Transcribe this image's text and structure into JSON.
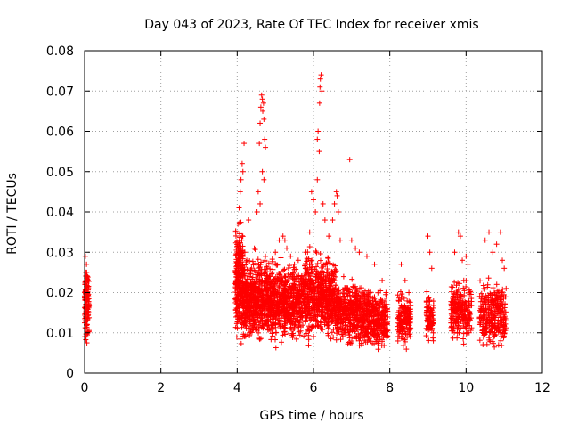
{
  "chart_data": {
    "type": "scatter",
    "title": "Day 043 of 2023, Rate Of TEC Index for receiver xmis",
    "xlabel": "GPS time / hours",
    "ylabel": "ROTI / TECUs",
    "xlim": [
      0,
      12
    ],
    "ylim": [
      0,
      0.08
    ],
    "x_ticks": [
      0,
      2,
      4,
      6,
      8,
      10,
      12
    ],
    "x_tick_labels": [
      "0",
      "2",
      "4",
      "6",
      "8",
      "10",
      "12"
    ],
    "y_ticks": [
      0,
      0.01,
      0.02,
      0.03,
      0.04,
      0.05,
      0.06,
      0.07,
      0.08
    ],
    "y_tick_labels": [
      "0",
      "0.01",
      "0.02",
      "0.03",
      "0.04",
      "0.05",
      "0.06",
      "0.07",
      "0.08"
    ],
    "grid": true,
    "marker": "+",
    "color": "#ff0000",
    "series": [
      {
        "name": "ROTI",
        "points": [
          [
            0.02,
            0.029
          ],
          [
            0.05,
            0.027
          ],
          [
            0.03,
            0.025
          ],
          [
            0.08,
            0.023
          ],
          [
            0.01,
            0.022
          ],
          [
            0.06,
            0.02
          ],
          [
            0.04,
            0.018
          ],
          [
            0.07,
            0.015
          ],
          [
            0.02,
            0.013
          ],
          [
            0.05,
            0.012
          ],
          [
            0.03,
            0.011
          ],
          [
            0.08,
            0.01
          ],
          [
            0.04,
            0.009
          ],
          [
            0.06,
            0.0075
          ],
          [
            0.02,
            0.016
          ],
          [
            0.07,
            0.024
          ],
          [
            0.05,
            0.021
          ],
          [
            0.03,
            0.014
          ],
          [
            4.02,
            0.037
          ],
          [
            4.05,
            0.041
          ],
          [
            4.08,
            0.045
          ],
          [
            4.1,
            0.048
          ],
          [
            4.13,
            0.052
          ],
          [
            4.15,
            0.05
          ],
          [
            4.18,
            0.057
          ],
          [
            4.12,
            0.033
          ],
          [
            4.2,
            0.03
          ],
          [
            4.25,
            0.028
          ],
          [
            4.3,
            0.038
          ],
          [
            4.35,
            0.025
          ],
          [
            4.45,
            0.031
          ],
          [
            4.52,
            0.04
          ],
          [
            4.55,
            0.045
          ],
          [
            4.58,
            0.057
          ],
          [
            4.6,
            0.062
          ],
          [
            4.62,
            0.066
          ],
          [
            4.64,
            0.069
          ],
          [
            4.66,
            0.068
          ],
          [
            4.67,
            0.065
          ],
          [
            4.69,
            0.067
          ],
          [
            4.7,
            0.063
          ],
          [
            4.72,
            0.058
          ],
          [
            4.74,
            0.056
          ],
          [
            4.66,
            0.05
          ],
          [
            4.7,
            0.048
          ],
          [
            4.6,
            0.042
          ],
          [
            5.0,
            0.03
          ],
          [
            5.1,
            0.033
          ],
          [
            5.2,
            0.034
          ],
          [
            5.25,
            0.033
          ],
          [
            5.3,
            0.031
          ],
          [
            5.4,
            0.029
          ],
          [
            5.5,
            0.027
          ],
          [
            5.6,
            0.028
          ],
          [
            5.8,
            0.03
          ],
          [
            5.9,
            0.035
          ],
          [
            5.95,
            0.045
          ],
          [
            6.0,
            0.043
          ],
          [
            6.05,
            0.04
          ],
          [
            6.1,
            0.058
          ],
          [
            6.12,
            0.06
          ],
          [
            6.15,
            0.055
          ],
          [
            6.18,
            0.073
          ],
          [
            6.2,
            0.074
          ],
          [
            6.17,
            0.071
          ],
          [
            6.22,
            0.07
          ],
          [
            6.16,
            0.067
          ],
          [
            6.1,
            0.048
          ],
          [
            6.25,
            0.042
          ],
          [
            6.3,
            0.038
          ],
          [
            6.4,
            0.034
          ],
          [
            6.5,
            0.038
          ],
          [
            6.55,
            0.042
          ],
          [
            6.6,
            0.045
          ],
          [
            6.62,
            0.044
          ],
          [
            6.65,
            0.04
          ],
          [
            6.7,
            0.033
          ],
          [
            6.95,
            0.053
          ],
          [
            7.0,
            0.033
          ],
          [
            7.1,
            0.031
          ],
          [
            7.2,
            0.03
          ],
          [
            7.4,
            0.029
          ],
          [
            7.6,
            0.027
          ],
          [
            7.8,
            0.023
          ],
          [
            7.9,
            0.02
          ],
          [
            8.3,
            0.027
          ],
          [
            8.4,
            0.023
          ],
          [
            8.5,
            0.02
          ],
          [
            9.0,
            0.034
          ],
          [
            9.05,
            0.03
          ],
          [
            9.1,
            0.026
          ],
          [
            9.7,
            0.03
          ],
          [
            9.8,
            0.035
          ],
          [
            9.85,
            0.034
          ],
          [
            9.9,
            0.028
          ],
          [
            10.0,
            0.029
          ],
          [
            10.05,
            0.027
          ],
          [
            10.5,
            0.033
          ],
          [
            10.6,
            0.035
          ],
          [
            10.7,
            0.03
          ],
          [
            10.8,
            0.032
          ],
          [
            10.9,
            0.035
          ],
          [
            10.95,
            0.028
          ],
          [
            11.0,
            0.026
          ]
        ]
      }
    ],
    "dense_clusters": [
      {
        "x": [
          -0.02,
          0.12
        ],
        "y": [
          0.007,
          0.028
        ],
        "count": 140
      },
      {
        "x": [
          3.95,
          4.15
        ],
        "y": [
          0.005,
          0.04
        ],
        "count": 260
      },
      {
        "x": [
          4.15,
          4.45
        ],
        "y": [
          0.006,
          0.03
        ],
        "count": 260
      },
      {
        "x": [
          4.45,
          4.85
        ],
        "y": [
          0.006,
          0.032
        ],
        "count": 300
      },
      {
        "x": [
          4.85,
          5.25
        ],
        "y": [
          0.005,
          0.03
        ],
        "count": 280
      },
      {
        "x": [
          5.25,
          5.7
        ],
        "y": [
          0.006,
          0.029
        ],
        "count": 300
      },
      {
        "x": [
          5.7,
          6.2
        ],
        "y": [
          0.006,
          0.033
        ],
        "count": 330
      },
      {
        "x": [
          6.2,
          6.6
        ],
        "y": [
          0.006,
          0.032
        ],
        "count": 300
      },
      {
        "x": [
          6.6,
          7.1
        ],
        "y": [
          0.005,
          0.025
        ],
        "count": 280
      },
      {
        "x": [
          7.1,
          7.5
        ],
        "y": [
          0.005,
          0.024
        ],
        "count": 240
      },
      {
        "x": [
          7.5,
          7.95
        ],
        "y": [
          0.004,
          0.022
        ],
        "count": 240
      },
      {
        "x": [
          8.2,
          8.55
        ],
        "y": [
          0.005,
          0.022
        ],
        "count": 160
      },
      {
        "x": [
          8.95,
          9.15
        ],
        "y": [
          0.006,
          0.022
        ],
        "count": 90
      },
      {
        "x": [
          9.6,
          10.15
        ],
        "y": [
          0.006,
          0.025
        ],
        "count": 220
      },
      {
        "x": [
          10.35,
          11.05
        ],
        "y": [
          0.004,
          0.025
        ],
        "count": 280
      }
    ]
  }
}
